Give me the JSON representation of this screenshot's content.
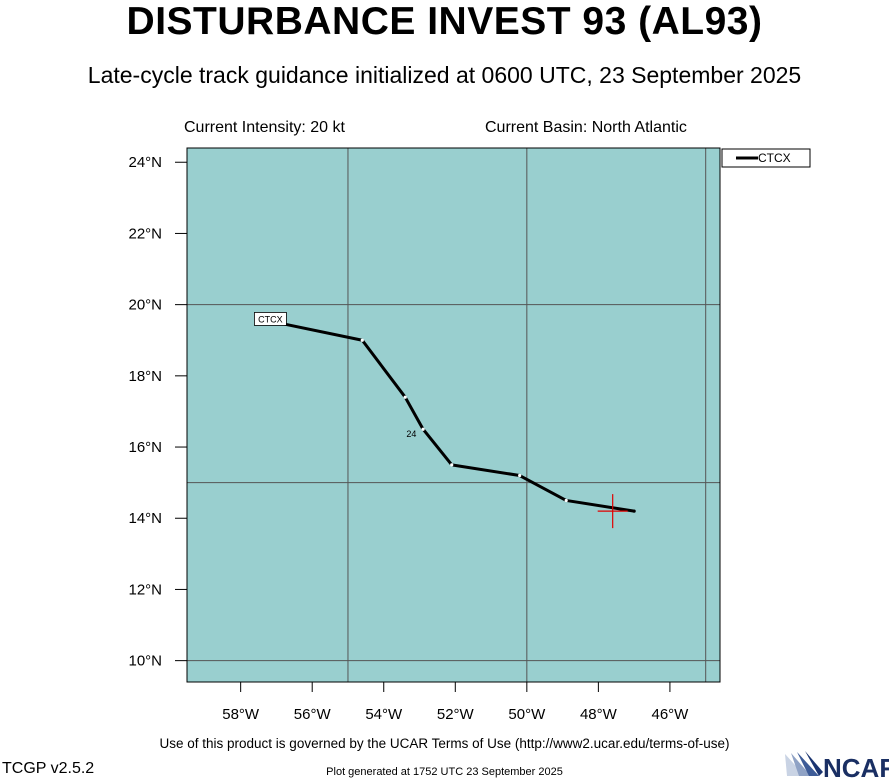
{
  "header": {
    "title": "DISTURBANCE INVEST 93 (AL93)",
    "subtitle": "Late-cycle track guidance initialized at 0600 UTC, 23 September 2025",
    "current_intensity": "Current Intensity: 20 kt",
    "current_basin": "Current Basin: North Atlantic"
  },
  "footer": {
    "terms": "Use of this product is governed by the UCAR Terms of Use (http://www2.ucar.edu/terms-of-use)",
    "version": "TCGP v2.5.2",
    "generated": "Plot generated at 1752 UTC   23 September 2025",
    "logo_text": "NCAR"
  },
  "chart_data": {
    "type": "line",
    "map_background": "#99cfcf",
    "grid": true,
    "legend_position": "top-right, outside plot",
    "xlim": [
      -59.5,
      -44.6
    ],
    "ylim": [
      9.4,
      24.4
    ],
    "x_ticks": [
      -58,
      -56,
      -54,
      -52,
      -50,
      -48,
      -46
    ],
    "x_tick_labels": [
      "58°W",
      "56°W",
      "54°W",
      "52°W",
      "50°W",
      "48°W",
      "46°W"
    ],
    "y_ticks": [
      10,
      12,
      14,
      16,
      18,
      20,
      22,
      24
    ],
    "y_tick_labels": [
      "10°N",
      "12°N",
      "14°N",
      "16°N",
      "18°N",
      "20°N",
      "22°N",
      "24°N"
    ],
    "grid_lon": [
      -55,
      -50,
      -45
    ],
    "grid_lat": [
      10,
      15,
      20
    ],
    "series": [
      {
        "name": "CTCX",
        "color": "#000000",
        "end_label": "CTCX",
        "points": [
          {
            "lon": -47.0,
            "lat": 14.2
          },
          {
            "lon": -48.9,
            "lat": 14.5
          },
          {
            "lon": -50.2,
            "lat": 15.2
          },
          {
            "lon": -52.1,
            "lat": 15.5
          },
          {
            "lon": -52.9,
            "lat": 16.5
          },
          {
            "lon": -53.4,
            "lat": 17.4
          },
          {
            "lon": -54.6,
            "lat": 19.0
          },
          {
            "lon": -57.0,
            "lat": 19.5
          }
        ],
        "hour_labels": [
          {
            "lon": -53.2,
            "lat": 16.4,
            "text": "24"
          }
        ]
      }
    ],
    "current_position": {
      "lon": -47.6,
      "lat": 14.2,
      "marker": "plus",
      "color": "#e00000"
    }
  }
}
